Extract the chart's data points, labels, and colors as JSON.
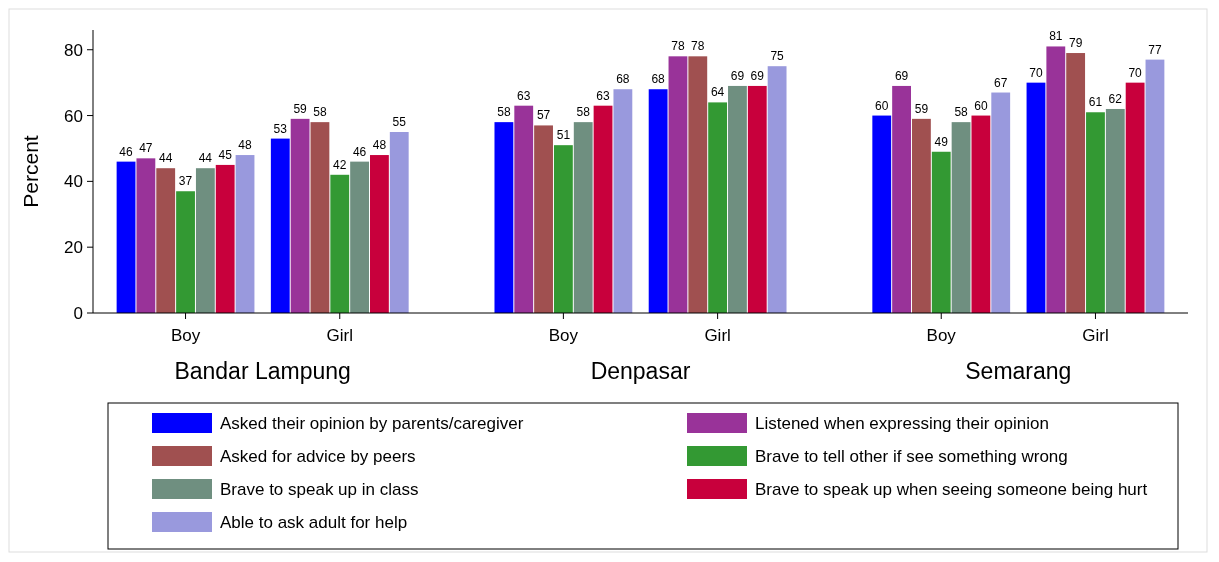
{
  "chart_data": {
    "type": "bar",
    "ylabel": "Percent",
    "categories": [
      "Boy",
      "Girl",
      "Boy",
      "Girl",
      "Boy",
      "Girl"
    ],
    "annotations": [
      "Bandar Lampung",
      "Denpasar",
      "Semarang"
    ],
    "series": [
      {
        "name": "Asked their opinion by parents/caregiver",
        "color": "#0000ff",
        "values": [
          46,
          53,
          58,
          68,
          60,
          70
        ]
      },
      {
        "name": "Listened when expressing their opinion",
        "color": "#993399",
        "values": [
          47,
          59,
          63,
          78,
          69,
          81
        ]
      },
      {
        "name": "Asked for advice by peers",
        "color": "#a05050",
        "values": [
          44,
          58,
          57,
          78,
          59,
          79
        ]
      },
      {
        "name": "Brave to tell other if see something wrong",
        "color": "#339933",
        "values": [
          37,
          42,
          51,
          64,
          49,
          61
        ]
      },
      {
        "name": "Brave to speak up in class",
        "color": "#6f8f80",
        "values": [
          44,
          46,
          58,
          69,
          58,
          62
        ]
      },
      {
        "name": "Brave to speak up when seeing someone being hurt",
        "color": "#c8003c",
        "values": [
          45,
          48,
          63,
          69,
          60,
          70
        ]
      },
      {
        "name": "Able to ask adult for help",
        "color": "#9999dd",
        "values": [
          48,
          55,
          68,
          75,
          67,
          77
        ]
      }
    ],
    "ylim": [
      0,
      86
    ],
    "yticks": [
      0,
      20,
      40,
      60,
      80
    ],
    "data_labels": true,
    "grid": false,
    "legend": "bottom"
  }
}
